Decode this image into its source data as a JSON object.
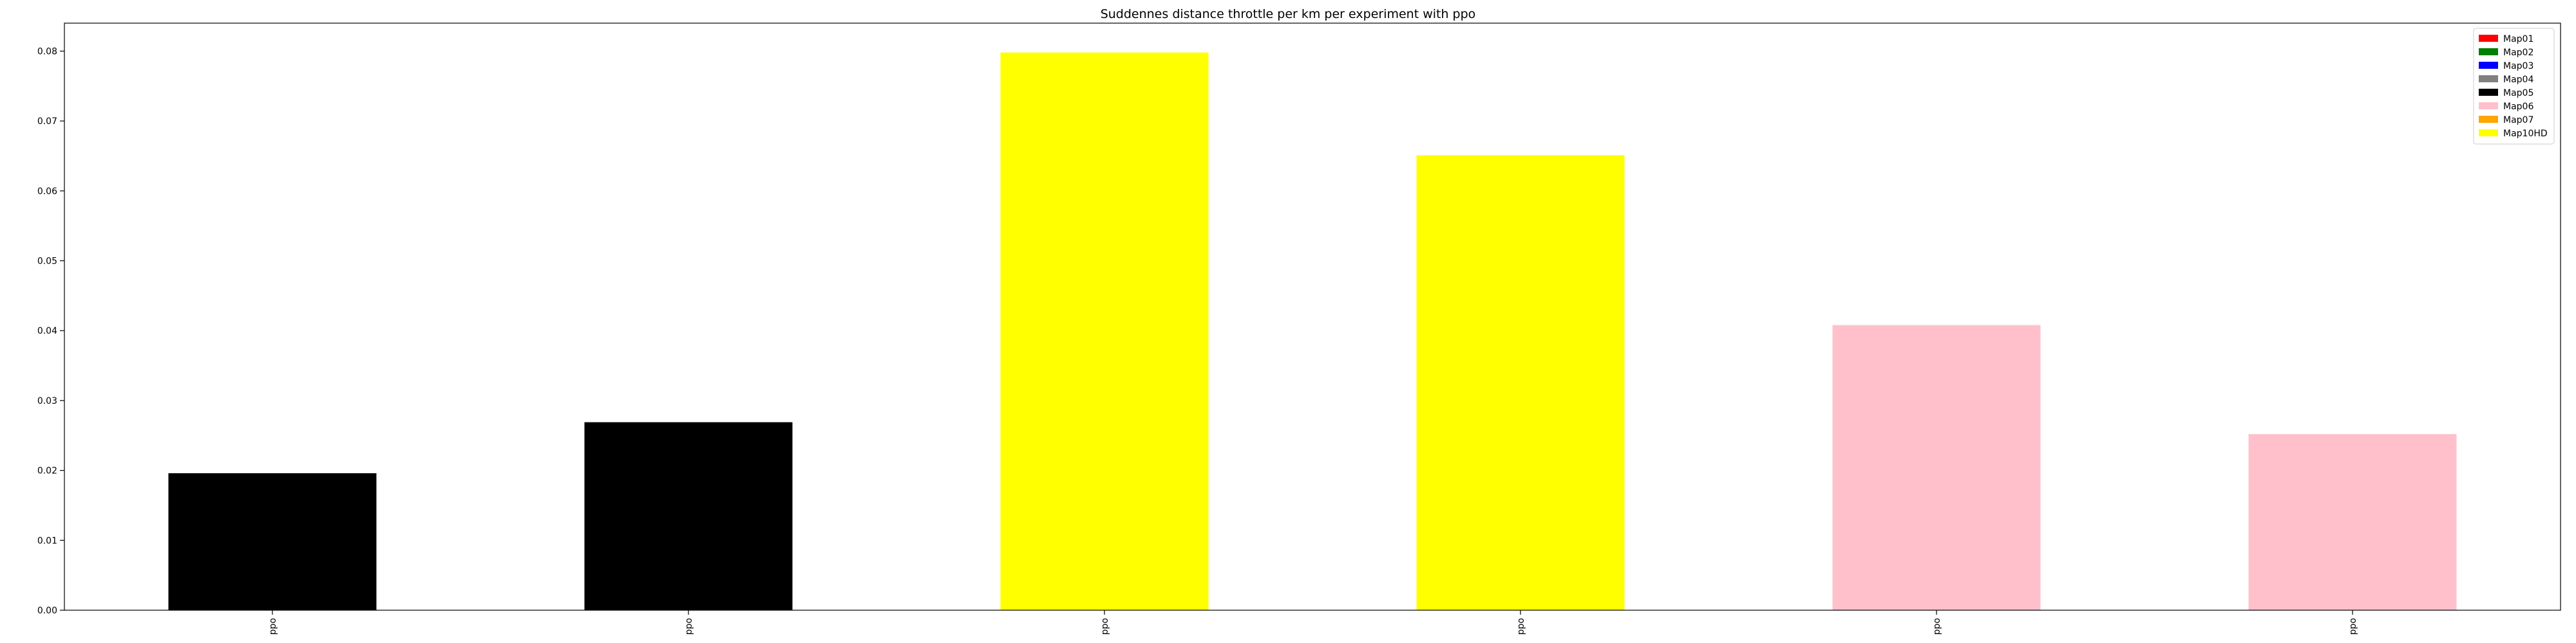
{
  "chart_data": {
    "type": "bar",
    "title": "Suddennes distance throttle per km per experiment with ppo",
    "xlabel": "",
    "ylabel": "",
    "categories": [
      "ppo",
      "ppo",
      "ppo",
      "ppo",
      "ppo",
      "ppo"
    ],
    "values": [
      0.0196,
      0.0269,
      0.0798,
      0.0651,
      0.0408,
      0.0252
    ],
    "bar_colors": [
      "#000000",
      "#000000",
      "#ffff00",
      "#ffff00",
      "#ffc0cb",
      "#ffc0cb"
    ],
    "ylim": [
      0,
      0.084
    ],
    "yticks": [
      0.0,
      0.01,
      0.02,
      0.03,
      0.04,
      0.05,
      0.06,
      0.07,
      0.08
    ],
    "ytick_labels": [
      "0.00",
      "0.01",
      "0.02",
      "0.03",
      "0.04",
      "0.05",
      "0.06",
      "0.07",
      "0.08"
    ],
    "grid": false,
    "legend": {
      "placement": "top-right",
      "entries": [
        {
          "name": "Map01",
          "color": "#ff0000"
        },
        {
          "name": "Map02",
          "color": "#008000"
        },
        {
          "name": "Map03",
          "color": "#0000ff"
        },
        {
          "name": "Map04",
          "color": "#808080"
        },
        {
          "name": "Map05",
          "color": "#000000"
        },
        {
          "name": "Map06",
          "color": "#ffc0cb"
        },
        {
          "name": "Map07",
          "color": "#ffa500"
        },
        {
          "name": "Map10HD",
          "color": "#ffff00"
        }
      ]
    }
  }
}
